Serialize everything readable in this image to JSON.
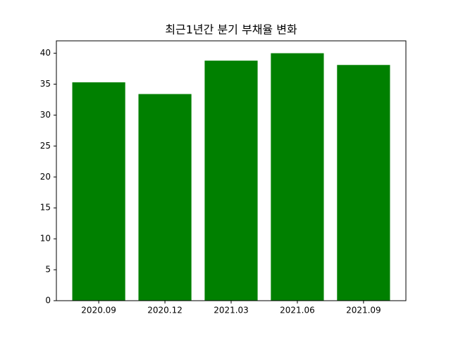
{
  "chart_data": {
    "type": "bar",
    "title": "최근1년간 분기 부채율 변화",
    "categories": [
      "2020.09",
      "2020.12",
      "2021.03",
      "2021.06",
      "2021.09"
    ],
    "values": [
      35.3,
      33.4,
      38.8,
      40.0,
      38.1
    ],
    "color": "#008000",
    "ylim": [
      0,
      42
    ],
    "yticks": [
      0,
      5,
      10,
      15,
      20,
      25,
      30,
      35,
      40
    ],
    "grid": false
  }
}
